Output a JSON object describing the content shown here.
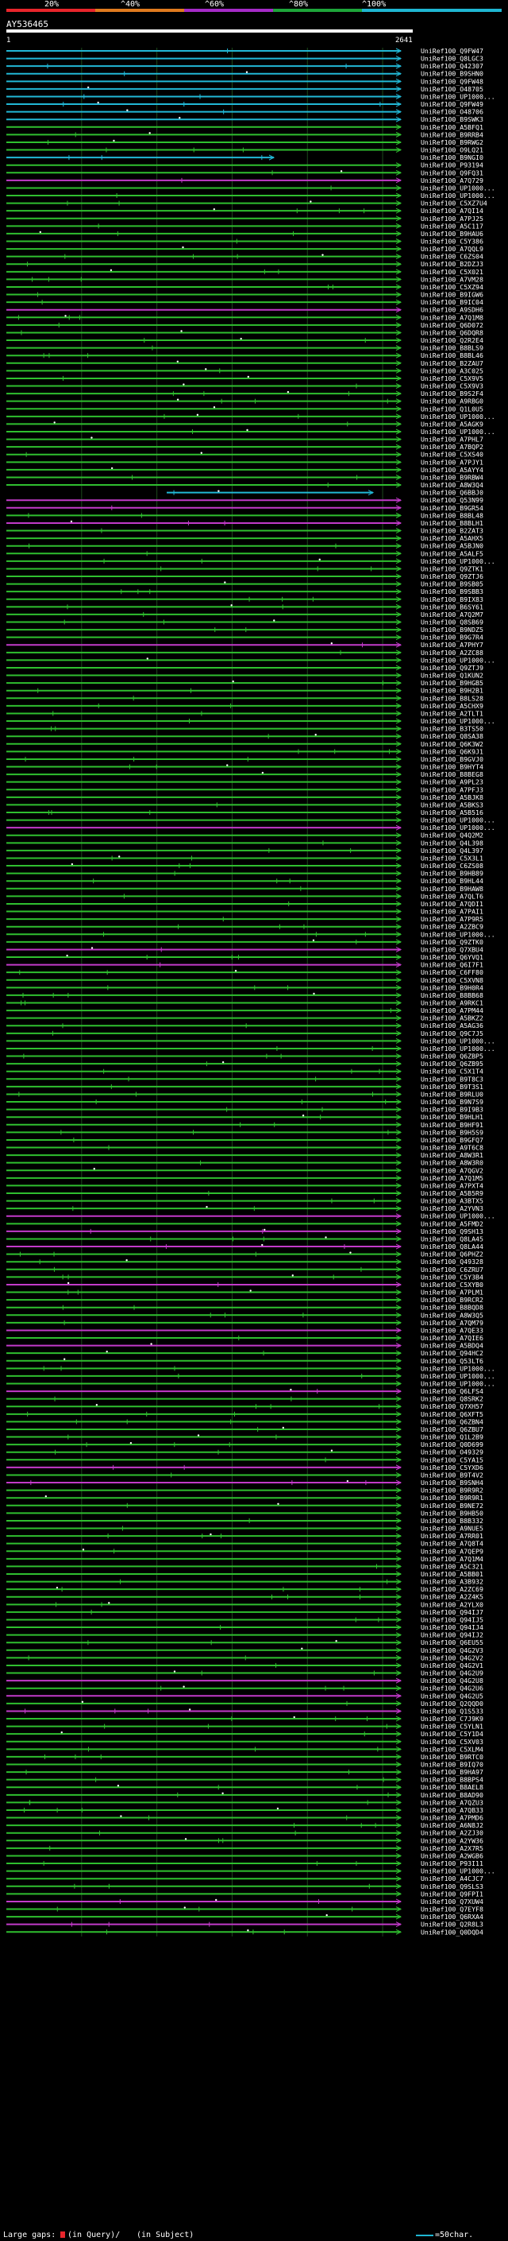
{
  "header": {
    "scale_ticks": [
      "20%",
      "^40%",
      "^60%",
      "^80%",
      "^100%"
    ],
    "scale_colors": [
      "#e8252b",
      "#e07b1f",
      "#a52bc7",
      "#1ea53a",
      "#1fb6d2"
    ],
    "query_id": "AY536465",
    "query_start": "1",
    "query_end": "2641"
  },
  "hits": [
    "UniRef100_Q9FW47",
    "UniRef100_Q8LGC3",
    "UniRef100_Q42307",
    "UniRef100_B9SHN0",
    "UniRef100_Q9FW48",
    "UniRef100_O48705",
    "UniRef100_UP1000...",
    "UniRef100_Q9FW49",
    "UniRef100_O48706",
    "UniRef100_B9SWK3",
    "UniRef100_A5BFQ1",
    "UniRef100_B9RRB4",
    "UniRef100_B9RWG2",
    "UniRef100_O9LQ21",
    "UniRef100_B9NGI0",
    "UniRef100_P93194",
    "UniRef100_Q9FQ31",
    "UniRef100_A7Q729",
    "UniRef100_UP1000...",
    "UniRef100_UP1000...",
    "UniRef100_C5XZ7U4",
    "UniRef100_A7QI14",
    "UniRef100_A7PJ25",
    "UniRef100_A5C117",
    "UniRef100_B9HAU6",
    "UniRef100_C5Y386",
    "UniRef100_A7QQL9",
    "UniRef100_C6ZS04",
    "UniRef100_B2DZJ3",
    "UniRef100_C5X021",
    "UniRef100_A7VM28",
    "UniRef100_C5XZ94",
    "UniRef100_B9IGW6",
    "UniRef100_B9IC04",
    "UniRef100_A9SDH6",
    "UniRef100_A7Q1M8",
    "UniRef100_Q6D072",
    "UniRef100_Q6DQR8",
    "UniRef100_Q2R2E4",
    "UniRef100_B8BLS9",
    "UniRef100_B8BL46",
    "UniRef100_B2ZAU7",
    "UniRef100_A3C025",
    "UniRef100_C5X9V5",
    "UniRef100_C5X9V3",
    "UniRef100_B9S2F4",
    "UniRef100_A9RBG0",
    "UniRef100_Q1L0U5",
    "UniRef100_UP1000...",
    "UniRef100_A5AGK9",
    "UniRef100_UP1000...",
    "UniRef100_A7PHL7",
    "UniRef100_A7BQP2",
    "UniRef100_C5XS40",
    "UniRef100_A7PJY1",
    "UniRef100_A5AYY4",
    "UniRef100_B9RBW4",
    "UniRef100_A8W3Q4",
    "UniRef100_Q6BBJ0",
    "UniRef100_Q53N99",
    "UniRef100_B9GR54",
    "UniRef100_B8BL48",
    "UniRef100_B8BLH1",
    "UniRef100_B2ZAT3",
    "UniRef100_A5AHX5",
    "UniRef100_A5BJN0",
    "UniRef100_A5ALF5",
    "UniRef100_UP1000...",
    "UniRef100_Q9ZTK1",
    "UniRef100_Q9ZTJ6",
    "UniRef100_B9SB05",
    "UniRef100_B9SBB3",
    "UniRef100_B9IX83",
    "UniRef100_B6SY61",
    "UniRef100_A7Q2M7",
    "UniRef100_Q8SB69",
    "UniRef100_B9NDZ5",
    "UniRef100_B9G7R4",
    "UniRef100_A7PHY7",
    "UniRef100_A2ZC88",
    "UniRef100_UP1000...",
    "UniRef100_Q9ZTJ9",
    "UniRef100_Q1KUN2",
    "UniRef100_B9HGB5",
    "UniRef100_B9H2B1",
    "UniRef100_B8LS28",
    "UniRef100_A5CHX9",
    "UniRef100_A2TLT1",
    "UniRef100_UP1000...",
    "UniRef100_B3TS50",
    "UniRef100_Q8SA38",
    "UniRef100_Q6K3W2",
    "UniRef100_Q6K9J1",
    "UniRef100_B9GVJ0",
    "UniRef100_B9HYT4",
    "UniRef100_B8BEG8",
    "UniRef100_A9PL23",
    "UniRef100_A7PFJ3",
    "UniRef100_A5BJK8",
    "UniRef100_A5BKS3",
    "UniRef100_A5B516",
    "UniRef100_UP1000...",
    "UniRef100_UP1000...",
    "UniRef100_Q4Q2M2",
    "UniRef100_Q4L398",
    "UniRef100_Q4L397",
    "UniRef100_C5X3L1",
    "UniRef100_C6ZS08",
    "UniRef100_B9HB89",
    "UniRef100_B9HL44",
    "UniRef100_B9HAW8",
    "UniRef100_A7QLT6",
    "UniRef100_A7QDI1",
    "UniRef100_A7PAI1",
    "UniRef100_A7P9R5",
    "UniRef100_A2ZBC9",
    "UniRef100_UP1000...",
    "UniRef100_Q9ZTK0",
    "UniRef100_Q7XBU4",
    "UniRef100_Q6YVQ1",
    "UniRef100_Q6I7F1",
    "UniRef100_C6FF80",
    "UniRef100_C5XVN8",
    "UniRef100_B9H0R4",
    "UniRef100_B8BB68",
    "UniRef100_A9RKC1",
    "UniRef100_A7PM44",
    "UniRef100_A5BKZ2",
    "UniRef100_A5AG36",
    "UniRef100_Q9C7J5",
    "UniRef100_UP1000...",
    "UniRef100_UP1000...",
    "UniRef100_Q6ZBP5",
    "UniRef100_Q6ZB95",
    "UniRef100_C5X1T4",
    "UniRef100_B9T8C3",
    "UniRef100_B9T3S1",
    "UniRef100_B9RLU0",
    "UniRef100_B9N7S9",
    "UniRef100_B9I9B3",
    "UniRef100_B9HLH1",
    "UniRef100_B9HF91",
    "UniRef100_B9H5S9",
    "UniRef100_B9GFQ7",
    "UniRef100_A9T6C8",
    "UniRef100_A8W3R1",
    "UniRef100_A8W3R0",
    "UniRef100_A7QGV2",
    "UniRef100_A7Q1M5",
    "UniRef100_A7PXT4",
    "UniRef100_A5B5R9",
    "UniRef100_A3BTX5",
    "UniRef100_A2YVN3",
    "UniRef100_UP1000...",
    "UniRef100_A5FMD2",
    "UniRef100_Q9SH13",
    "UniRef100_Q8LA45",
    "UniRef100_Q8LA44",
    "UniRef100_Q6PHZ2",
    "UniRef100_Q49328",
    "UniRef100_C6ZRU7",
    "UniRef100_C5Y3B4",
    "UniRef100_C5XYB0",
    "UniRef100_A7PLM1",
    "UniRef100_B9RCR2",
    "UniRef100_B8BQD8",
    "UniRef100_A8W3Q5",
    "UniRef100_A7QM79",
    "UniRef100_A7QE33",
    "UniRef100_A7QIE6",
    "UniRef100_A5BDQ4",
    "UniRef100_Q94HC2",
    "UniRef100_Q53LT6",
    "UniRef100_UP1000...",
    "UniRef100_UP1000...",
    "UniRef100_UP1000...",
    "UniRef100_Q6LFS4",
    "UniRef100_Q8SRK2",
    "UniRef100_Q7XH57",
    "UniRef100_Q6XFT5",
    "UniRef100_Q6ZBN4",
    "UniRef100_Q6ZBU7",
    "UniRef100_Q1L2B9",
    "UniRef100_Q0D699",
    "UniRef100_O49329",
    "UniRef100_C5YA15",
    "UniRef100_C5YXD6",
    "UniRef100_B9T4V2",
    "UniRef100_B9SNH4",
    "UniRef100_B9R9R2",
    "UniRef100_B9R9R1",
    "UniRef100_B9NE72",
    "UniRef100_B9HB50",
    "UniRef100_B8B332",
    "UniRef100_A9NUE5",
    "UniRef100_A7RR01",
    "UniRef100_A7Q8T4",
    "UniRef100_A7QEP9",
    "UniRef100_A7Q1M4",
    "UniRef100_A5C321",
    "UniRef100_A5BB01",
    "UniRef100_A3B932",
    "UniRef100_A2ZC69",
    "UniRef100_A2Z4K5",
    "UniRef100_A2YLX0",
    "UniRef100_Q94IJ7",
    "UniRef100_Q94IJ5",
    "UniRef100_Q94IJ4",
    "UniRef100_Q94IJ2",
    "UniRef100_Q6EU55",
    "UniRef100_Q4G2V3",
    "UniRef100_Q4G2V2",
    "UniRef100_Q4G2V1",
    "UniRef100_Q4G2U9",
    "UniRef100_Q4G2U8",
    "UniRef100_Q4G2U6",
    "UniRef100_Q4G2U5",
    "UniRef100_Q2QQD0",
    "UniRef100_Q1S533",
    "UniRef100_C7J9K9",
    "UniRef100_C5YLN1",
    "UniRef100_C5Y1D4",
    "UniRef100_C5XV03",
    "UniRef100_C5XLM4",
    "UniRef100_B9RTC0",
    "UniRef100_B9IQ70",
    "UniRef100_B9HA97",
    "UniRef100_B8BPS4",
    "UniRef100_B8AEL8",
    "UniRef100_B8AD90",
    "UniRef100_A7QZU3",
    "UniRef100_A7QB33",
    "UniRef100_A7PMD6",
    "UniRef100_A6N8J2",
    "UniRef100_A2ZJ30",
    "UniRef100_A2YW36",
    "UniRef100_A2X7R5",
    "UniRef100_A2WGB6",
    "UniRef100_P93I11",
    "UniRef100_UP1000...",
    "UniRef100_A4CJC7",
    "UniRef100_Q9SLS3",
    "UniRef100_Q9FPI1",
    "UniRef100_Q7XUW4",
    "UniRef100_Q7EYF8",
    "UniRef100_Q6RXA4",
    "UniRef100_Q2R8L3",
    "UniRef100_Q0DQD4"
  ],
  "footer": {
    "gaps_label": "Large gaps:",
    "in_query_label": "(in Query)/",
    "in_subject_label": "(in Subject)",
    "scale_label": "=50char."
  }
}
